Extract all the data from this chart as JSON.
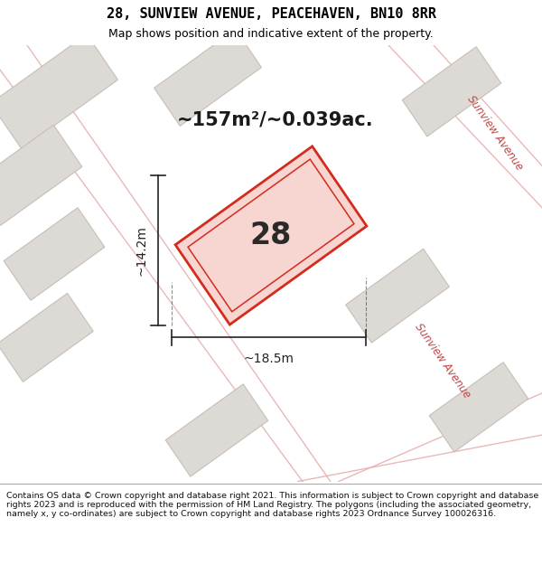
{
  "title": "28, SUNVIEW AVENUE, PEACEHAVEN, BN10 8RR",
  "subtitle": "Map shows position and indicative extent of the property.",
  "footer": "Contains OS data © Crown copyright and database right 2021. This information is subject to Crown copyright and database rights 2023 and is reproduced with the permission of HM Land Registry. The polygons (including the associated geometry, namely x, y co-ordinates) are subject to Crown copyright and database rights 2023 Ordnance Survey 100026316.",
  "map_bg": "#ede9e4",
  "building_fill": "#ddd9d4",
  "building_stroke": "#c5bfb8",
  "highlight_fill": "#f7d5d0",
  "highlight_stroke": "#d42b1e",
  "road_color": "#e8b0b0",
  "road_label_color": "#c04848",
  "dim_color": "#222222",
  "area_text": "~157m²/~0.039ac.",
  "number_text": "28",
  "dim_width": "~18.5m",
  "dim_height": "~14.2m",
  "road_label": "Sunview Avenue",
  "title_fontsize": 11,
  "subtitle_fontsize": 9,
  "area_fontsize": 15,
  "number_fontsize": 24,
  "dim_fontsize": 10,
  "road_fontsize": 8.5,
  "footer_fontsize": 6.8
}
